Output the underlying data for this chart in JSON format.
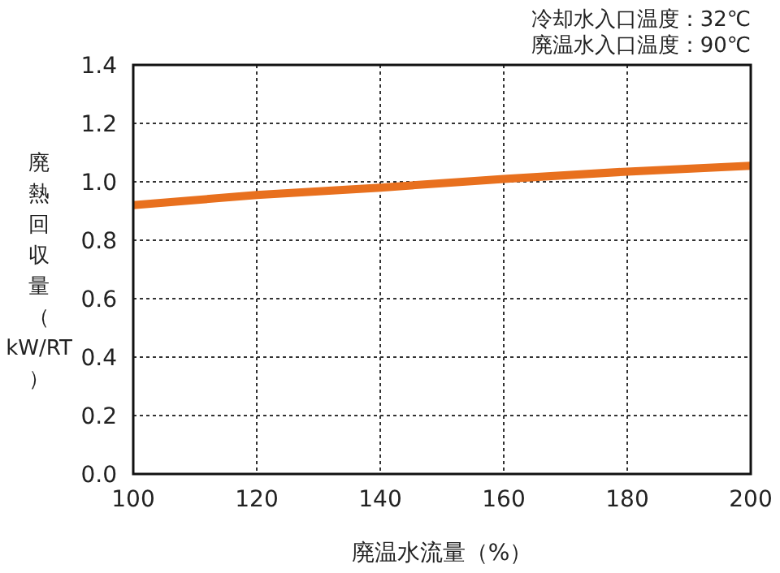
{
  "chart_data": {
    "type": "line",
    "xlabel": "廃温水流量（%）",
    "ylabel": "廃熱回収量（kW/RT）",
    "annotations": [
      "冷却水入口温度：32℃",
      "廃温水入口温度：90℃"
    ],
    "x": [
      100,
      120,
      140,
      160,
      180,
      200
    ],
    "series": [
      {
        "color": "#e8701e",
        "values": [
          0.92,
          0.955,
          0.98,
          1.01,
          1.035,
          1.055
        ]
      }
    ],
    "xlim": [
      100,
      200
    ],
    "ylim": [
      0,
      1.4
    ],
    "xticks": [
      100,
      120,
      140,
      160,
      180,
      200
    ],
    "yticks": [
      {
        "value": 0,
        "label": "0.0"
      },
      0.2,
      0.4,
      0.6,
      0.8,
      {
        "value": 1,
        "label": "1.0"
      },
      1.2,
      1.4
    ],
    "grid": true
  }
}
